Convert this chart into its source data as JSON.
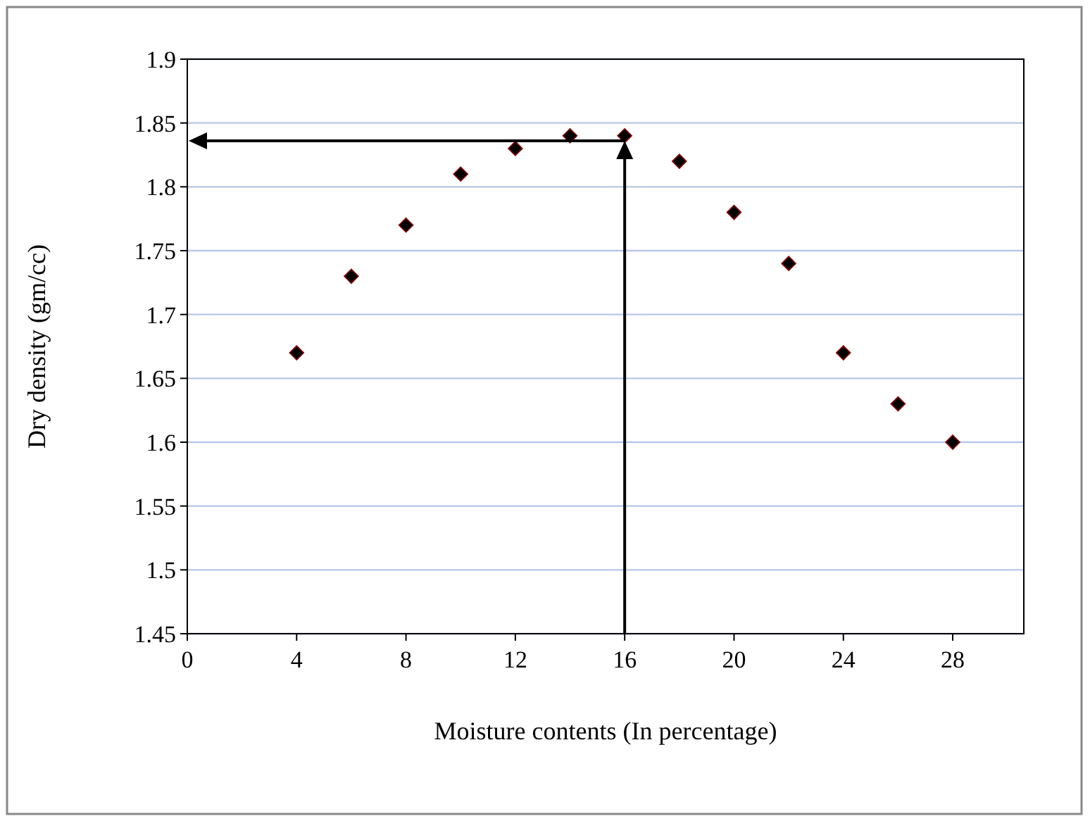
{
  "chart_data": {
    "type": "scatter",
    "xlabel": "Moisture contents (In percentage)",
    "ylabel": "Dry density (gm/cc)",
    "x": [
      4,
      6,
      8,
      10,
      12,
      14,
      16,
      18,
      20,
      22,
      24,
      26,
      28
    ],
    "series": [
      {
        "color": "#000000",
        "values": [
          1.67,
          1.73,
          1.77,
          1.81,
          1.83,
          1.84,
          1.84,
          1.82,
          1.78,
          1.74,
          1.67,
          1.63,
          1.6
        ]
      }
    ],
    "xlim": [
      0,
      30.6
    ],
    "xticks": [
      0,
      4,
      8,
      12,
      16,
      20,
      24,
      28
    ],
    "ylim": [
      1.45,
      1.9
    ],
    "yticks": [
      1.45,
      1.5,
      1.55,
      1.6,
      1.65,
      1.7,
      1.75,
      1.8,
      1.85,
      1.9
    ],
    "grid": "y",
    "marker": "diamond"
  }
}
